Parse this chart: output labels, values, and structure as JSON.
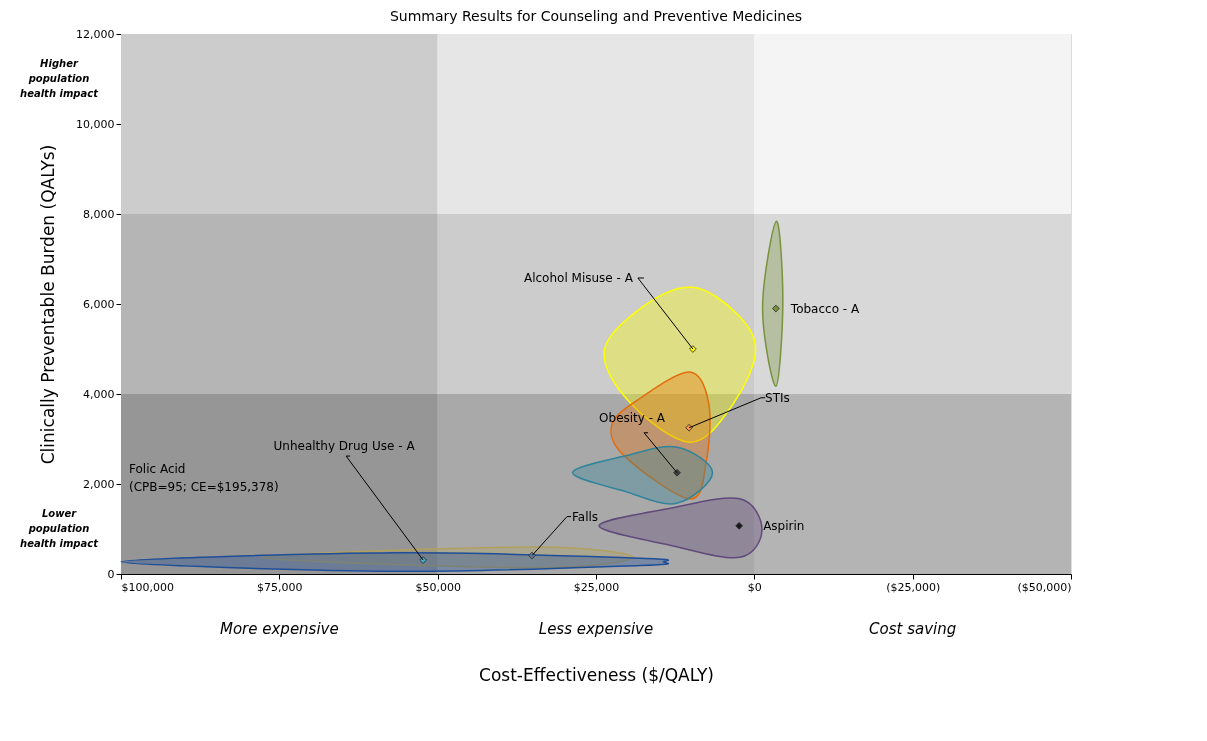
{
  "chart_data": {
    "type": "scatter",
    "title": "Summary Results for Counseling and Preventive Medicines",
    "xlabel": "Cost-Effectiveness ($/QALY)",
    "ylabel": "Clinically Preventable Burden (QALYs)",
    "xlim": [
      100000,
      -50000
    ],
    "xticks": [
      {
        "value": 100000,
        "label": "$100,000"
      },
      {
        "value": 75000,
        "label": "$75,000"
      },
      {
        "value": 50000,
        "label": "$50,000"
      },
      {
        "value": 25000,
        "label": "$25,000"
      },
      {
        "value": 0,
        "label": "$0"
      },
      {
        "value": -25000,
        "label": "($25,000)"
      },
      {
        "value": -50000,
        "label": "($50,000)"
      }
    ],
    "ylim": [
      0,
      12000
    ],
    "yticks": [
      {
        "value": 0,
        "label": "0"
      },
      {
        "value": 2000,
        "label": "2,000"
      },
      {
        "value": 4000,
        "label": "4,000"
      },
      {
        "value": 6000,
        "label": "6,000"
      },
      {
        "value": 8000,
        "label": "8,000"
      },
      {
        "value": 10000,
        "label": "10,000"
      },
      {
        "value": 12000,
        "label": "12,000"
      }
    ],
    "grid": false,
    "legend": false,
    "marker": "diamond",
    "series": [
      {
        "type": "area",
        "marker": "none",
        "color": "#ffff00",
        "x": [
          23700,
          17200,
          9700,
          2800,
          -200,
          3300,
          10000,
          19500
        ],
        "values": [
          4970,
          5980,
          6370,
          5790,
          4970,
          3790,
          2930,
          3790
        ]
      },
      {
        "type": "area",
        "marker": "none",
        "color": "#77933c",
        "x": [
          -3500,
          -4500,
          -3400,
          -1300
        ],
        "values": [
          7840,
          6040,
          4170,
          5920
        ]
      },
      {
        "type": "area",
        "marker": "none",
        "color": "#e46c0a",
        "x": [
          10200,
          7200,
          7600,
          10200,
          20500,
          22500,
          18100
        ],
        "values": [
          4490,
          3790,
          2490,
          1670,
          2620,
          3320,
          3900
        ]
      },
      {
        "type": "area",
        "marker": "none",
        "color": "#31849b",
        "x": [
          12300,
          6600,
          12300,
          20500,
          28700,
          20500
        ],
        "values": [
          2820,
          2250,
          1570,
          1840,
          2250,
          2620
        ]
      },
      {
        "type": "area",
        "marker": "none",
        "color": "#604a7b",
        "x": [
          24500,
          13300,
          2300,
          -1200,
          2300,
          13300
        ],
        "values": [
          1070,
          1460,
          1670,
          990,
          370,
          640
        ]
      },
      {
        "type": "area",
        "marker": "none",
        "color": "#b0a060",
        "x": [
          78000,
          34900,
          19100,
          34900
        ],
        "values": [
          370,
          600,
          370,
          140
        ]
      },
      {
        "type": "area",
        "marker": "none",
        "color": "#1f4e99",
        "x": [
          100000,
          56500,
          18000,
          14400,
          18000,
          56500
        ],
        "values": [
          270,
          470,
          350,
          270,
          190,
          60
        ]
      },
      {
        "name": "Alcohol Misuse - A",
        "color": "#ffff00",
        "x": [
          9700
        ],
        "values": [
          5000
        ]
      },
      {
        "name": "Tobacco - A",
        "color": "#77933c",
        "x": [
          -3400
        ],
        "values": [
          5900
        ]
      },
      {
        "name": "STIs",
        "color": "#f79646",
        "x": [
          10300
        ],
        "values": [
          3250
        ]
      },
      {
        "name": "Obesity - A",
        "color": "#404040",
        "x": [
          12200
        ],
        "values": [
          2250
        ]
      },
      {
        "name": "Aspirin",
        "color": "#1a1a1a",
        "x": [
          2400
        ],
        "values": [
          1070
        ]
      },
      {
        "name": "Falls",
        "color": "#5f7f9f",
        "x": [
          35100
        ],
        "values": [
          410
        ]
      },
      {
        "name": "Unhealthy Drug Use - A",
        "color": "#4bacc6",
        "x": [
          52300
        ],
        "values": [
          310
        ]
      }
    ],
    "bands": [
      {
        "axis": "x",
        "from": 100000,
        "to": 50000,
        "color": "#cccccc"
      },
      {
        "axis": "x",
        "from": 50000,
        "to": 0,
        "color": "#e6e6e6"
      },
      {
        "axis": "x",
        "from": 0,
        "to": -50000,
        "color": "#f4f4f4"
      },
      {
        "axis": "y",
        "from": 4000,
        "to": 8000,
        "color": "#e2e2e2"
      },
      {
        "axis": "y",
        "from": 0,
        "to": 4000,
        "color": "#bcbcbc"
      }
    ],
    "annotations": [
      "Higher\npopulation\nhealth impact",
      "Lower\npopulation\nhealth impact",
      "More expensive",
      "Less expensive",
      "Cost saving",
      "Folic Acid\n(CPB=95; CE=$195,378)"
    ]
  }
}
